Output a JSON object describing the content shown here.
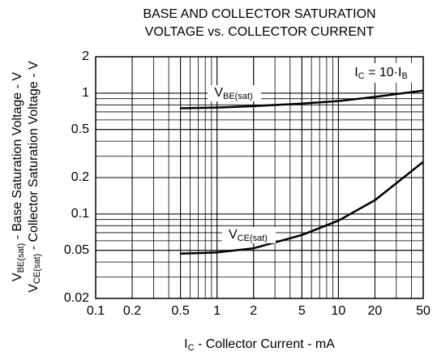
{
  "chart_data": {
    "type": "line",
    "title": [
      "BASE AND COLLECTOR SATURATION",
      "VOLTAGE vs. COLLECTOR CURRENT"
    ],
    "xlabel": [
      {
        "text": "I"
      },
      {
        "text": "C",
        "sub": true
      },
      {
        "text": " - Collector Current - mA"
      }
    ],
    "ylabel": [
      [
        {
          "text": "V"
        },
        {
          "text": "BE(sat)",
          "sub": true
        },
        {
          "text": " - Base Saturation Voltage - V"
        }
      ],
      [
        {
          "text": "V"
        },
        {
          "text": "CE(sat)",
          "sub": true
        },
        {
          "text": " - Collector Saturation Voltage - V"
        }
      ]
    ],
    "annotation": [
      {
        "text": "I"
      },
      {
        "text": "C",
        "sub": true
      },
      {
        "text": " = 10·I"
      },
      {
        "text": "B",
        "sub": true
      }
    ],
    "x": [
      0.5,
      1,
      2,
      5,
      10,
      20,
      50
    ],
    "series": [
      {
        "name": [
          {
            "text": "V"
          },
          {
            "text": "BE(sat)",
            "sub": true
          }
        ],
        "color": "#000000",
        "values": [
          0.75,
          0.76,
          0.78,
          0.82,
          0.86,
          0.93,
          1.05
        ]
      },
      {
        "name": [
          {
            "text": "V"
          },
          {
            "text": "CE(sat)",
            "sub": true
          }
        ],
        "color": "#000000",
        "values": [
          0.047,
          0.048,
          0.052,
          0.067,
          0.088,
          0.13,
          0.27
        ]
      }
    ],
    "xlim": [
      0.1,
      50
    ],
    "ylim": [
      0.02,
      2
    ],
    "xticks": [
      0.1,
      0.2,
      0.5,
      1,
      2,
      5,
      10,
      20,
      50
    ],
    "yticks": [
      0.02,
      0.05,
      0.1,
      0.2,
      0.5,
      1,
      2
    ],
    "xscale": "log",
    "yscale": "log",
    "grid": true,
    "minor_grid": true
  }
}
